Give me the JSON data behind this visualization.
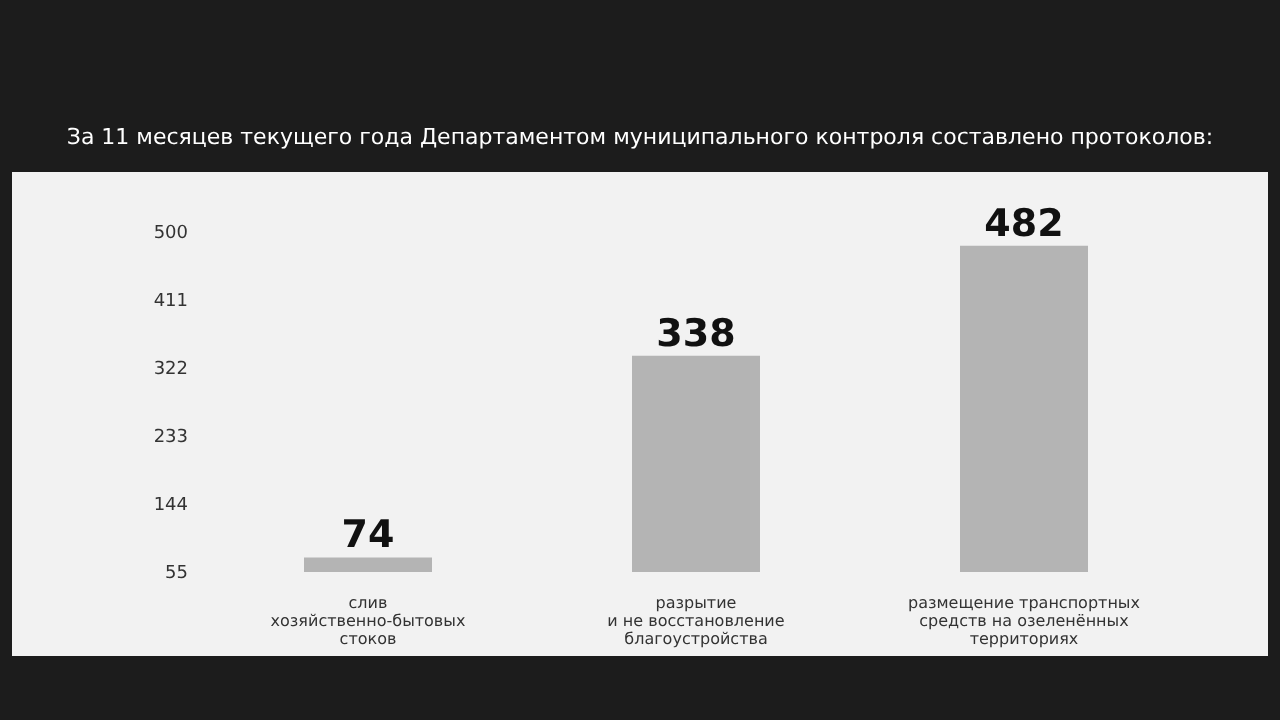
{
  "chart_data": {
    "type": "bar",
    "title": "За 11 месяцев текущего года Департаментом муниципального контроля составлено протоколов:",
    "categories": [
      "слив\nхозяйственно-бытовых\nстоков",
      "разрытие\nи не восстановление\nблагоустройства",
      "размещение транспортных\nсредств на озеленённых\nтерриториях"
    ],
    "values": [
      74,
      338,
      482
    ],
    "color": "#b4b4b4",
    "ylim": [
      55,
      500
    ],
    "yticks": [
      55,
      144,
      233,
      322,
      411,
      500
    ],
    "grid": false,
    "data_labels": true
  }
}
